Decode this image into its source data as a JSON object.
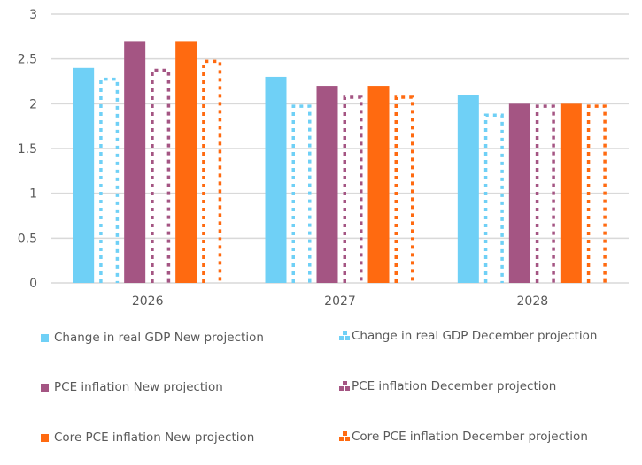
{
  "chart_data": {
    "type": "bar",
    "title": "",
    "xlabel": "",
    "ylabel": "",
    "ylim": [
      0,
      3
    ],
    "yticks": [
      "0",
      "0.5",
      "1",
      "1.5",
      "2",
      "2.5",
      "3"
    ],
    "grid": true,
    "legend_position": "bottom",
    "categories": [
      "2026",
      "2027",
      "2028"
    ],
    "series": [
      {
        "name": "Change in real GDP New projection",
        "color": "#6fd0f6",
        "style": "solid",
        "values": [
          2.4,
          2.3,
          2.1
        ]
      },
      {
        "name": "Change in real GDP December projection",
        "color": "#6fd0f6",
        "style": "dotted",
        "values": [
          2.3,
          2.0,
          1.9
        ]
      },
      {
        "name": "PCE inflation New projection",
        "color": "#a45583",
        "style": "solid",
        "values": [
          2.7,
          2.2,
          2.0
        ]
      },
      {
        "name": "PCE inflation December projection",
        "color": "#a45583",
        "style": "dotted",
        "values": [
          2.4,
          2.1,
          2.0
        ]
      },
      {
        "name": "Core PCE inflation New projection",
        "color": "#ff6a10",
        "style": "solid",
        "values": [
          2.7,
          2.2,
          2.0
        ]
      },
      {
        "name": "Core PCE inflation December projection",
        "color": "#ff6a10",
        "style": "dotted",
        "values": [
          2.5,
          2.1,
          2.0
        ]
      }
    ]
  },
  "colors": {
    "gridline": "#d9d9d9",
    "axis_text": "#595959"
  }
}
